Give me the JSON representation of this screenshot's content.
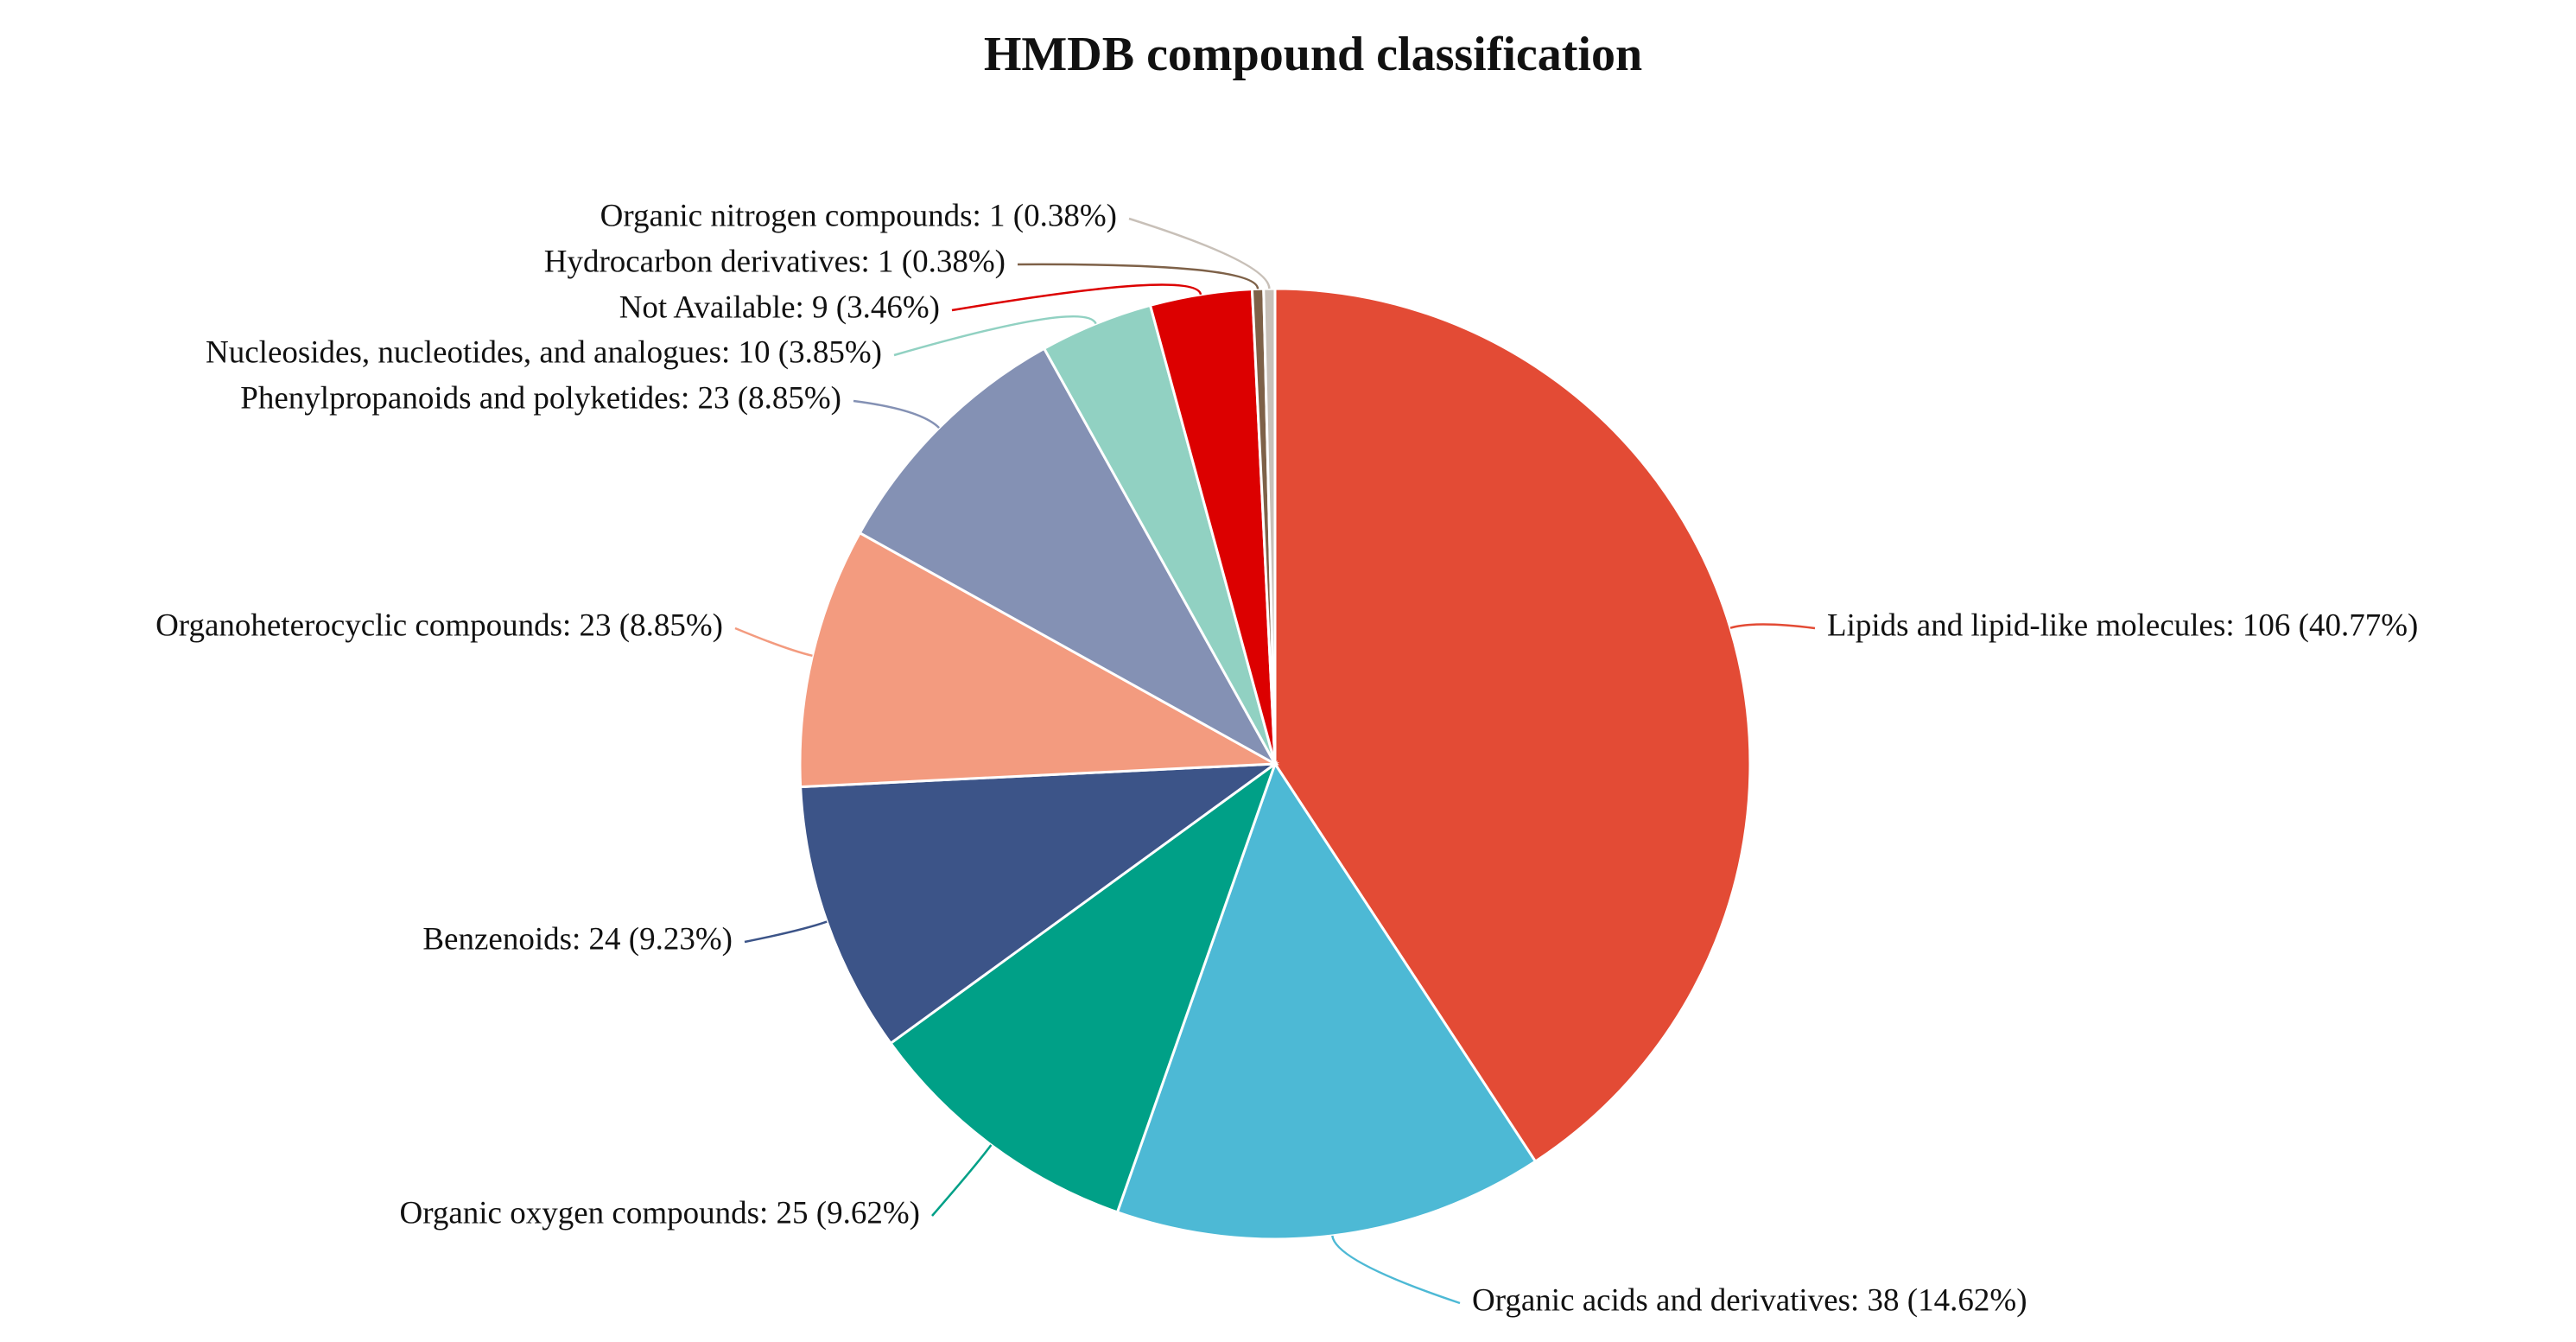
{
  "chart_data": {
    "type": "pie",
    "title": "HMDB compound classification",
    "values": [
      106,
      38,
      25,
      24,
      23,
      23,
      10,
      9,
      1,
      1
    ],
    "value_labels": [
      "Lipids and lipid-like molecules: 106 (40.77%)",
      "Organic acids and derivatives: 38 (14.62%)",
      "Organic oxygen compounds: 25 (9.62%)",
      "Benzenoids: 24 (9.23%)",
      "Organoheterocyclic compounds: 23 (8.85%)",
      "Phenylpropanoids and polyketides: 23 (8.85%)",
      "Nucleosides, nucleotides, and analogues: 10 (3.85%)",
      "Not Available: 9 (3.46%)",
      "Hydrocarbon derivatives: 1 (0.38%)",
      "Organic nitrogen compounds: 1 (0.38%)"
    ],
    "colors": [
      "#E34B35",
      "#4DB9D5",
      "#00A087",
      "#3C5488",
      "#F39B7F",
      "#8491B4",
      "#91D1C2",
      "#DC0000",
      "#7E6148",
      "#C8C0B8"
    ]
  }
}
